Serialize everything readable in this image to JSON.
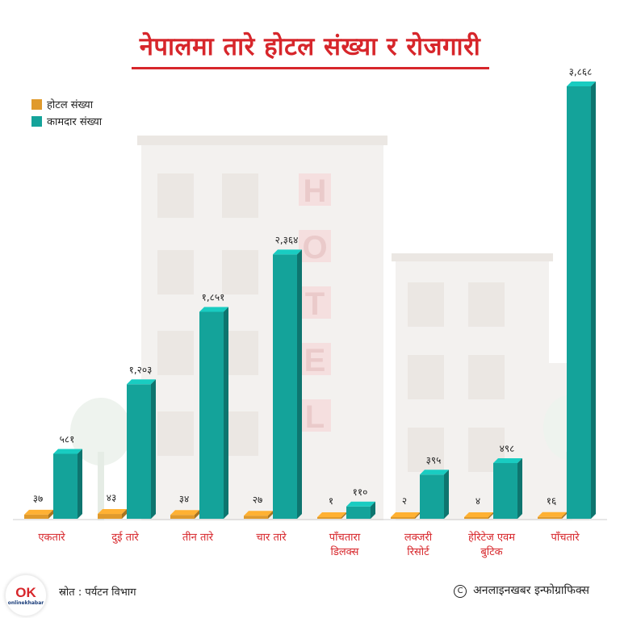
{
  "title": "नेपालमा तारे होटल संख्या र रोजगारी",
  "colors": {
    "title": "#d7262b",
    "hotel": "#e09a2c",
    "worker": "#14a39a",
    "category_label": "#d7262b"
  },
  "legend": [
    {
      "name": "होटल  संख्या",
      "color": "#e09a2c"
    },
    {
      "name": "कामदार  संख्या",
      "color": "#14a39a"
    }
  ],
  "chart_data": {
    "type": "bar",
    "title": "नेपालमा तारे होटल संख्या र रोजगारी",
    "xlabel": "",
    "ylabel": "",
    "grid": false,
    "legend_position": "top-left",
    "ylim": [
      0,
      3868
    ],
    "categories": [
      "एकतारे",
      "दुई  तारे",
      "तीन  तारे",
      "चार  तारे",
      "पाँचतारा\nडिलक्स",
      "लक्जरी\nरिसोर्ट",
      "हेरिटेज  एवम\nबुटिक",
      "पाँचतारे"
    ],
    "series": [
      {
        "name": "होटल  संख्या",
        "values": [
          37,
          43,
          34,
          27,
          1,
          2,
          4,
          16
        ],
        "labels": [
          "३७",
          "४३",
          "३४",
          "२७",
          "१",
          "२",
          "४",
          "१६"
        ]
      },
      {
        "name": "कामदार  संख्या",
        "values": [
          581,
          1203,
          1851,
          2364,
          110,
          395,
          498,
          3868
        ],
        "labels": [
          "५८१",
          "१,२०३",
          "१,८५१",
          "२,३६४",
          "११०",
          "३९५",
          "४९८",
          "३,८६८"
        ]
      }
    ]
  },
  "background_sign": "HOTEL",
  "footer": {
    "source": "स्रोत : पर्यटन विभाग",
    "credit": "अनलाइनखबर इन्फोग्राफिक्स",
    "copyright_symbol": "C",
    "logo_mark": "OK",
    "logo_text": "onlinekhabar"
  }
}
